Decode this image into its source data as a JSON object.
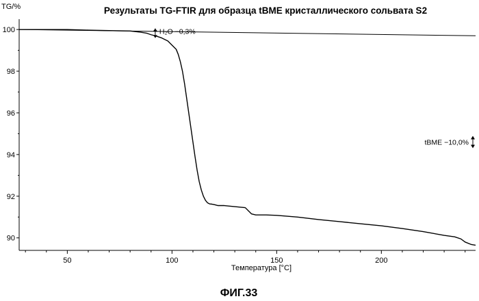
{
  "chart_data": {
    "type": "line",
    "title": "Результаты TG-FTIR для образца tBME кристаллического сольвата S2",
    "ylabel": "TG/%",
    "xlabel": "Температура [°C]",
    "xlim": [
      27,
      245
    ],
    "ylim": [
      89.4,
      100.3
    ],
    "x_ticks": [
      50,
      100,
      150,
      200
    ],
    "y_ticks": [
      90,
      92,
      94,
      96,
      98,
      100
    ],
    "x_tick_labels": [
      "50",
      "100",
      "150",
      "200"
    ],
    "y_tick_labels": [
      "90",
      "92",
      "94",
      "96",
      "98",
      "100"
    ],
    "grid": false,
    "legend": "none",
    "series": [
      {
        "x": [
          27,
          30,
          40,
          50,
          60,
          70,
          80,
          85,
          88,
          90,
          92,
          95,
          98,
          100,
          102,
          103,
          104,
          105,
          106,
          107,
          108,
          109,
          110,
          111,
          112,
          113,
          114,
          115,
          116,
          117,
          118,
          119,
          120,
          122,
          125,
          130,
          135,
          138,
          140,
          145,
          150,
          160,
          170,
          180,
          190,
          200,
          210,
          220,
          230,
          235,
          238,
          240,
          243,
          245
        ],
        "y": [
          100.0,
          100.0,
          100.0,
          100.0,
          99.97,
          99.95,
          99.93,
          99.87,
          99.82,
          99.75,
          99.7,
          99.6,
          99.45,
          99.25,
          99.05,
          98.8,
          98.45,
          98.0,
          97.4,
          96.7,
          96.0,
          95.3,
          94.6,
          93.9,
          93.25,
          92.7,
          92.3,
          92.0,
          91.8,
          91.68,
          91.63,
          91.62,
          91.6,
          91.55,
          91.55,
          91.5,
          91.45,
          91.15,
          91.1,
          91.1,
          91.08,
          91.0,
          90.88,
          90.78,
          90.68,
          90.58,
          90.45,
          90.3,
          90.12,
          90.05,
          89.95,
          89.8,
          89.68,
          89.65
        ]
      }
    ],
    "reference_line": {
      "y": [
        100.0,
        99.7
      ],
      "x": [
        27,
        245
      ]
    },
    "annotations": [
      {
        "text": "H₂O −0,3%",
        "x": 92,
        "y": 99.85
      },
      {
        "text": "tBME −10,0%",
        "x": 245,
        "y": 94.6
      }
    ],
    "arrow_colors": "#000000",
    "line_color": "#000000"
  },
  "caption": "ФИГ.33"
}
